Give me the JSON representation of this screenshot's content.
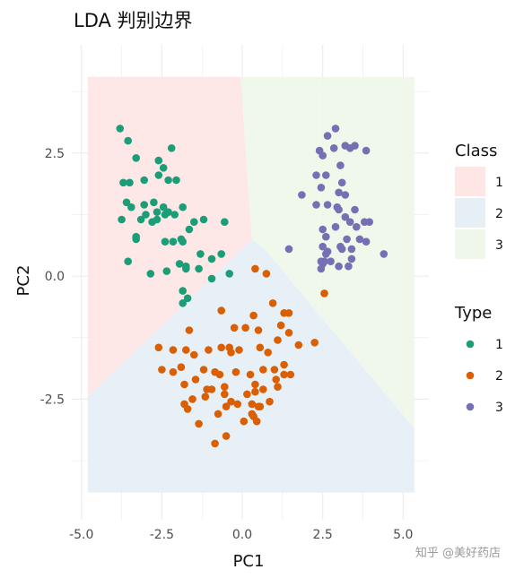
{
  "chart_data": {
    "type": "scatter",
    "title": "LDA 判别边界",
    "xlabel": "PC1",
    "ylabel": "PC2",
    "xlim": [
      -5.3,
      5.8
    ],
    "ylim": [
      -4.95,
      4.7
    ],
    "xticks": [
      -5.0,
      -2.5,
      0.0,
      2.5,
      5.0
    ],
    "xtick_labels": [
      "-5.0",
      "-2.5",
      "0.0",
      "2.5",
      "5.0"
    ],
    "yticks": [
      -2.5,
      0.0,
      2.5
    ],
    "ytick_labels": [
      "-2.5",
      "0.0",
      "2.5"
    ],
    "grid": true,
    "regions": {
      "legend_title": "Class",
      "classes": [
        {
          "label": "1",
          "color": "#fde6e4",
          "polygon": [
            [
              -4.8,
              4.05
            ],
            [
              -0.05,
              4.05
            ],
            [
              0.3,
              0.75
            ],
            [
              -4.8,
              -2.45
            ]
          ]
        },
        {
          "label": "2",
          "color": "#e6eef6",
          "polygon": [
            [
              -4.8,
              -2.45
            ],
            [
              0.3,
              0.75
            ],
            [
              0.7,
              0.55
            ],
            [
              5.35,
              -3.1
            ],
            [
              5.35,
              -4.4
            ],
            [
              -4.8,
              -4.4
            ]
          ]
        },
        {
          "label": "3",
          "color": "#eef7ea",
          "polygon": [
            [
              -0.05,
              4.05
            ],
            [
              5.35,
              4.05
            ],
            [
              5.35,
              -3.1
            ],
            [
              0.7,
              0.55
            ],
            [
              0.3,
              0.75
            ]
          ]
        }
      ]
    },
    "points_legend_title": "Type",
    "series": [
      {
        "name": "1",
        "color": "#1b9e77",
        "points": [
          [
            -3.8,
            3.0
          ],
          [
            -3.55,
            2.75
          ],
          [
            -3.3,
            2.4
          ],
          [
            -2.6,
            2.35
          ],
          [
            -2.2,
            2.6
          ],
          [
            -2.45,
            2.2
          ],
          [
            -2.6,
            2.05
          ],
          [
            -2.3,
            1.95
          ],
          [
            -2.05,
            1.95
          ],
          [
            -3.7,
            1.9
          ],
          [
            -3.5,
            1.9
          ],
          [
            -3.05,
            1.95
          ],
          [
            -3.6,
            1.5
          ],
          [
            -3.45,
            1.4
          ],
          [
            -3.05,
            1.45
          ],
          [
            -2.75,
            1.5
          ],
          [
            -3.0,
            1.25
          ],
          [
            -2.65,
            1.3
          ],
          [
            -2.8,
            1.1
          ],
          [
            -2.45,
            1.4
          ],
          [
            -2.4,
            1.25
          ],
          [
            -2.3,
            1.3
          ],
          [
            -2.1,
            1.25
          ],
          [
            -3.75,
            1.15
          ],
          [
            -3.15,
            1.15
          ],
          [
            -2.65,
            1.15
          ],
          [
            -1.85,
            1.4
          ],
          [
            -1.5,
            1.1
          ],
          [
            -1.2,
            1.15
          ],
          [
            -0.55,
            1.1
          ],
          [
            -1.65,
            0.95
          ],
          [
            -1.9,
            0.75
          ],
          [
            -1.85,
            0.7
          ],
          [
            -2.15,
            0.7
          ],
          [
            -2.4,
            0.7
          ],
          [
            -1.3,
            0.45
          ],
          [
            -0.95,
            0.35
          ],
          [
            -0.65,
            0.45
          ],
          [
            -3.3,
            0.8
          ],
          [
            -3.3,
            0.75
          ],
          [
            -3.55,
            0.3
          ],
          [
            -2.85,
            0.05
          ],
          [
            -2.35,
            0.1
          ],
          [
            -1.95,
            0.25
          ],
          [
            -1.75,
            0.15
          ],
          [
            -1.75,
            0.2
          ],
          [
            -1.35,
            0.15
          ],
          [
            -0.95,
            -0.05
          ],
          [
            -0.4,
            0.05
          ],
          [
            -1.85,
            -0.3
          ],
          [
            -1.7,
            -0.45
          ],
          [
            -1.85,
            -0.55
          ]
        ]
      },
      {
        "name": "2",
        "color": "#d95f02",
        "points": [
          [
            0.4,
            0.15
          ],
          [
            0.75,
            0.05
          ],
          [
            -0.65,
            -0.7
          ],
          [
            0.35,
            -0.8
          ],
          [
            0.95,
            -0.55
          ],
          [
            1.3,
            -0.75
          ],
          [
            1.45,
            -0.75
          ],
          [
            1.2,
            -1.0
          ],
          [
            -1.65,
            -1.1
          ],
          [
            -0.25,
            -1.05
          ],
          [
            0.1,
            -1.05
          ],
          [
            0.5,
            -1.1
          ],
          [
            1.45,
            -1.15
          ],
          [
            1.1,
            -1.3
          ],
          [
            -2.15,
            -1.5
          ],
          [
            -1.05,
            -1.5
          ],
          [
            -0.65,
            -1.45
          ],
          [
            -0.4,
            -1.45
          ],
          [
            -0.1,
            -1.5
          ],
          [
            0.55,
            -1.45
          ],
          [
            1.75,
            -1.4
          ],
          [
            2.25,
            -1.35
          ],
          [
            -1.75,
            -1.5
          ],
          [
            -0.2,
            -1.95
          ],
          [
            -0.35,
            -1.55
          ],
          [
            0.8,
            -1.55
          ],
          [
            1.3,
            -1.8
          ],
          [
            1.0,
            -1.9
          ],
          [
            -1.8,
            -2.2
          ],
          [
            -1.45,
            -2.1
          ],
          [
            -1.2,
            -1.9
          ],
          [
            -0.85,
            -1.95
          ],
          [
            -2.6,
            -1.45
          ],
          [
            -1.5,
            -1.6
          ],
          [
            -0.7,
            -2.0
          ],
          [
            -0.55,
            -2.25
          ],
          [
            0.25,
            -2.0
          ],
          [
            0.4,
            -2.2
          ],
          [
            1.05,
            -2.1
          ],
          [
            1.3,
            -2.0
          ],
          [
            1.5,
            -2.0
          ],
          [
            -2.15,
            -1.95
          ],
          [
            -1.9,
            -1.85
          ],
          [
            -2.5,
            -1.9
          ],
          [
            0.65,
            -1.9
          ],
          [
            -1.15,
            -2.45
          ],
          [
            -0.95,
            -2.3
          ],
          [
            -0.55,
            -2.4
          ],
          [
            -1.55,
            -2.5
          ],
          [
            -1.1,
            -2.3
          ],
          [
            -0.35,
            -2.55
          ],
          [
            0.15,
            -2.4
          ],
          [
            0.4,
            -2.35
          ],
          [
            0.65,
            -2.3
          ],
          [
            0.85,
            -2.55
          ],
          [
            -1.8,
            -2.6
          ],
          [
            -1.7,
            -2.7
          ],
          [
            0.55,
            -2.65
          ],
          [
            0.35,
            -2.85
          ],
          [
            0.5,
            -2.65
          ],
          [
            0.3,
            -2.6
          ],
          [
            -0.15,
            -2.6
          ],
          [
            0.3,
            -2.8
          ],
          [
            -0.75,
            -2.8
          ],
          [
            1.1,
            -2.25
          ],
          [
            -0.5,
            -2.65
          ],
          [
            0.45,
            -2.95
          ],
          [
            0.05,
            -2.95
          ],
          [
            -1.35,
            -3.0
          ],
          [
            -0.5,
            -3.25
          ],
          [
            -0.85,
            -3.4
          ],
          [
            2.55,
            -0.35
          ]
        ]
      },
      {
        "name": "3",
        "color": "#7570b3",
        "points": [
          [
            2.9,
            3.0
          ],
          [
            2.65,
            2.85
          ],
          [
            3.2,
            2.65
          ],
          [
            3.5,
            2.65
          ],
          [
            2.4,
            2.55
          ],
          [
            3.35,
            2.6
          ],
          [
            2.85,
            2.6
          ],
          [
            2.5,
            2.45
          ],
          [
            3.85,
            2.55
          ],
          [
            3.05,
            2.25
          ],
          [
            2.3,
            2.05
          ],
          [
            2.6,
            2.05
          ],
          [
            3.1,
            1.9
          ],
          [
            3.2,
            1.65
          ],
          [
            2.45,
            1.8
          ],
          [
            3.0,
            1.7
          ],
          [
            3.0,
            1.35
          ],
          [
            1.85,
            1.65
          ],
          [
            2.3,
            1.45
          ],
          [
            2.65,
            1.45
          ],
          [
            2.95,
            1.4
          ],
          [
            3.2,
            1.2
          ],
          [
            3.5,
            1.35
          ],
          [
            3.35,
            1.1
          ],
          [
            3.55,
            1.0
          ],
          [
            3.95,
            1.1
          ],
          [
            3.8,
            1.1
          ],
          [
            2.5,
            0.95
          ],
          [
            2.9,
            1.0
          ],
          [
            2.6,
            0.8
          ],
          [
            3.25,
            0.75
          ],
          [
            3.65,
            0.75
          ],
          [
            4.4,
            0.45
          ],
          [
            3.85,
            0.7
          ],
          [
            3.05,
            0.6
          ],
          [
            3.4,
            0.55
          ],
          [
            2.6,
            0.45
          ],
          [
            2.5,
            0.6
          ],
          [
            2.5,
            0.25
          ],
          [
            2.45,
            0.3
          ],
          [
            2.65,
            0.5
          ],
          [
            3.4,
            0.35
          ],
          [
            3.0,
            0.2
          ],
          [
            2.75,
            0.3
          ],
          [
            3.1,
            0.55
          ],
          [
            2.55,
            0.3
          ],
          [
            3.3,
            0.2
          ],
          [
            1.45,
            0.55
          ],
          [
            2.45,
            0.15
          ]
        ]
      }
    ]
  },
  "watermark": "知乎 @美好药店"
}
